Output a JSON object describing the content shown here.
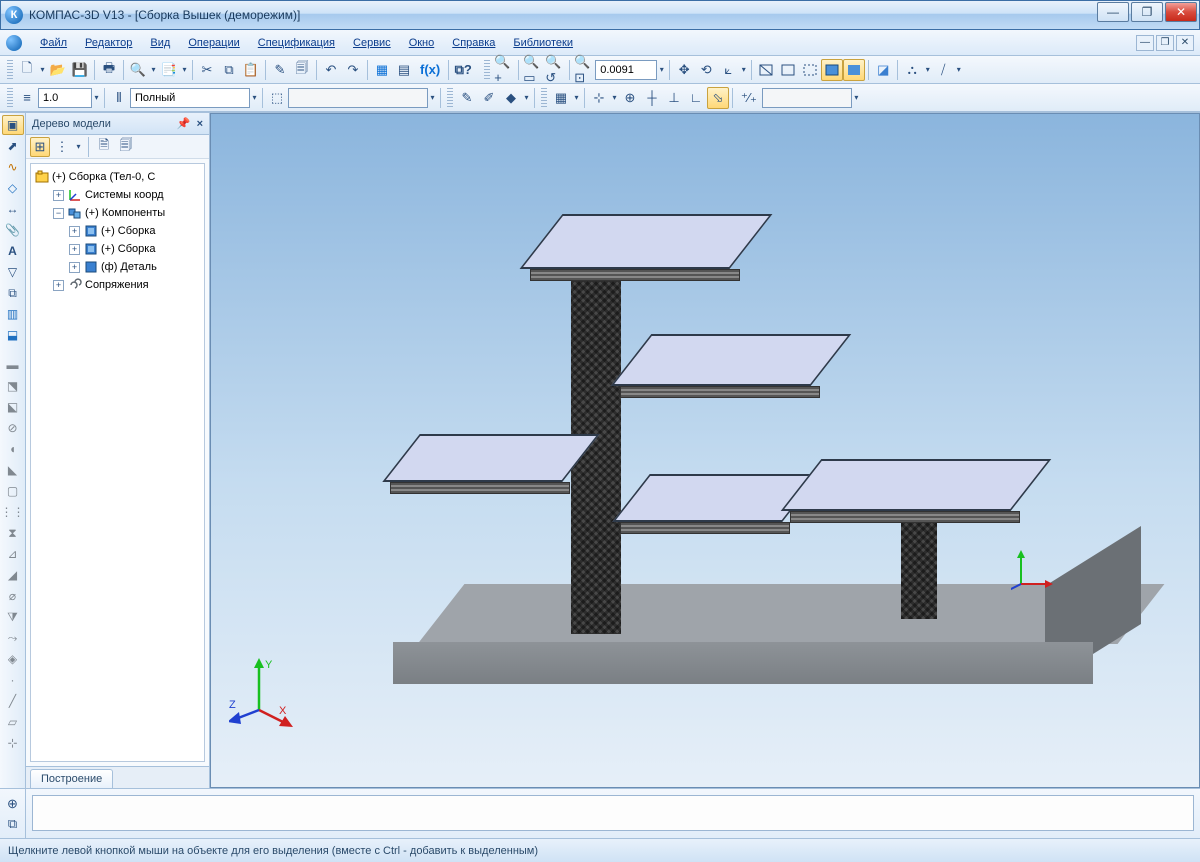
{
  "window": {
    "title": "КОМПАС-3D V13 - [Сборка Вышек (деморежим)]"
  },
  "menu": {
    "items": [
      "Файл",
      "Редактор",
      "Вид",
      "Операции",
      "Спецификация",
      "Сервис",
      "Окно",
      "Справка",
      "Библиотеки"
    ]
  },
  "toolbar1": {
    "zoom_value": "0.0091"
  },
  "toolbar2": {
    "scale_value": "1.0",
    "style_value": "Полный",
    "layer_value": ""
  },
  "tree": {
    "title": "Дерево модели",
    "root": "(+) Сборка (Тел-0, С",
    "nodes": [
      {
        "indent": 1,
        "exp": "+",
        "icon": "coord",
        "label": "Системы коорд"
      },
      {
        "indent": 1,
        "exp": "-",
        "icon": "comp",
        "label": "(+) Компоненты"
      },
      {
        "indent": 2,
        "exp": "+",
        "icon": "asm",
        "label": "(+) Сборка"
      },
      {
        "indent": 2,
        "exp": "+",
        "icon": "asm",
        "label": "(+) Сборка"
      },
      {
        "indent": 2,
        "exp": "+",
        "icon": "part",
        "label": "(ф) Деталь"
      },
      {
        "indent": 1,
        "exp": "+",
        "icon": "mate",
        "label": "Сопряжения"
      }
    ],
    "tab": "Построение"
  },
  "status": {
    "text": "Щелкните левой кнопкой мыши на объекте для его выделения (вместе с Ctrl - добавить к выделенным)"
  },
  "axis": {
    "x": "X",
    "y": "Y",
    "z": "Z"
  },
  "colors": {
    "board": "#d2d8f0",
    "platform": "#9fa4aa",
    "mesh_dark": "#555555",
    "mesh_light": "#888888",
    "sky_top": "#8bb5dd",
    "sky_bot": "#e6eff8"
  }
}
